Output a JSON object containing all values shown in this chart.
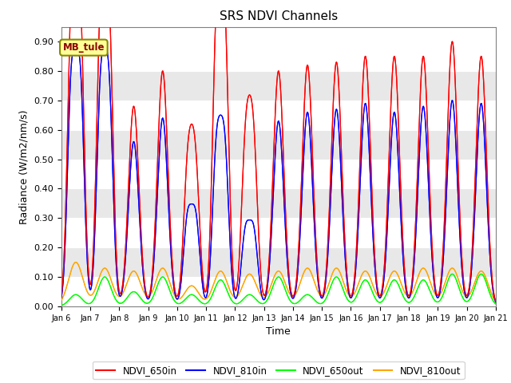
{
  "title": "SRS NDVI Channels",
  "xlabel": "Time",
  "ylabel": "Radiance (W/m2/nm/s)",
  "annotation": "MB_tule",
  "legend_entries": [
    "NDVI_650in",
    "NDVI_810in",
    "NDVI_650out",
    "NDVI_810out"
  ],
  "colors": [
    "red",
    "blue",
    "lime",
    "orange"
  ],
  "ylim": [
    0.0,
    0.95
  ],
  "xlim_days": [
    6.0,
    21.0
  ],
  "background_color": "#e8e8e8",
  "tick_labels": [
    "Jan 6",
    "Jan 7",
    "Jan 8",
    "Jan 9",
    "Jan 10",
    "Jan 11",
    "Jan 12",
    "Jan 13",
    "Jan 14",
    "Jan 15",
    "Jan 16",
    "Jan 17",
    "Jan 18",
    "Jan 19",
    "Jan 20",
    "Jan 21"
  ],
  "daily_peaks": {
    "650in": [
      0.79,
      0.8,
      0.68,
      0.8,
      0.49,
      0.8,
      0.56,
      0.8,
      0.82,
      0.83,
      0.85,
      0.85,
      0.85,
      0.9,
      0.85
    ],
    "810in": [
      0.53,
      0.63,
      0.56,
      0.64,
      0.24,
      0.47,
      0.2,
      0.63,
      0.66,
      0.67,
      0.69,
      0.66,
      0.68,
      0.7,
      0.69
    ],
    "650out": [
      0.04,
      0.1,
      0.05,
      0.1,
      0.04,
      0.09,
      0.04,
      0.1,
      0.04,
      0.1,
      0.09,
      0.09,
      0.09,
      0.11,
      0.11
    ],
    "810out": [
      0.15,
      0.13,
      0.12,
      0.13,
      0.07,
      0.12,
      0.11,
      0.12,
      0.13,
      0.13,
      0.12,
      0.12,
      0.13,
      0.13,
      0.12
    ]
  },
  "peak_widths": {
    "650in": 0.18,
    "810in": 0.18,
    "650out": 0.22,
    "810out": 0.25
  },
  "secondary_peaks": {
    "650in": [
      0.53,
      0.49,
      0.0,
      0.0,
      0.18,
      0.46,
      0.22,
      0.0,
      0.0,
      0.0,
      0.0,
      0.0,
      0.0,
      0.0,
      0.0
    ],
    "810in": [
      0.45,
      0.35,
      0.0,
      0.0,
      0.15,
      0.25,
      0.13,
      0.0,
      0.0,
      0.0,
      0.0,
      0.0,
      0.0,
      0.0,
      0.0
    ]
  },
  "secondary_offsets": [
    -0.18,
    0.18
  ]
}
